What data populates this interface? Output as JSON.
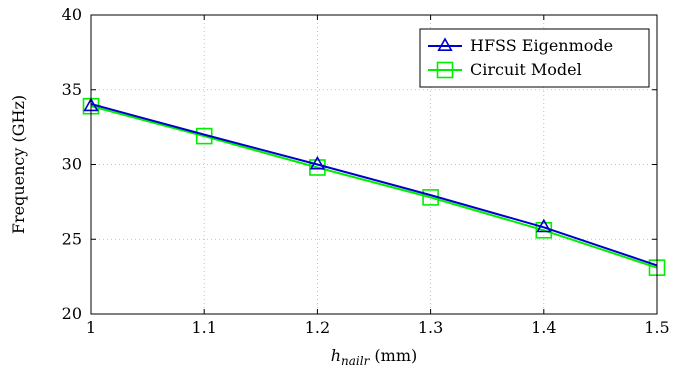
{
  "chart_data": {
    "type": "line",
    "xlabel_main": "h",
    "xlabel_sub": "nailr",
    "xlabel_unit": " (mm)",
    "ylabel": "Frequency (GHz)",
    "xlim": [
      1,
      1.5
    ],
    "ylim": [
      20,
      40
    ],
    "xticks": [
      1,
      1.1,
      1.2,
      1.3,
      1.4,
      1.5
    ],
    "xtick_labels": [
      "1",
      "1.1",
      "1.2",
      "1.3",
      "1.4",
      "1.5"
    ],
    "yticks": [
      20,
      25,
      30,
      35,
      40
    ],
    "ytick_labels": [
      "20",
      "25",
      "30",
      "35",
      "40"
    ],
    "grid": true,
    "legend_position": "top-right",
    "series": [
      {
        "name": "HFSS Eigenmode",
        "color": "#0000cc",
        "marker": "triangle",
        "x": [
          1,
          1.2,
          1.4
        ],
        "y": [
          33.9,
          30,
          25.8
        ],
        "line_x": [
          1,
          1.1,
          1.2,
          1.3,
          1.4,
          1.5
        ],
        "line_y": [
          34.05,
          32.0,
          30.0,
          27.95,
          25.8,
          23.25
        ]
      },
      {
        "name": "Circuit Model",
        "color": "#00ee00",
        "marker": "square",
        "x": [
          1,
          1.1,
          1.2,
          1.3,
          1.4,
          1.5
        ],
        "y": [
          33.9,
          31.9,
          29.8,
          27.8,
          25.6,
          23.1
        ]
      }
    ]
  }
}
